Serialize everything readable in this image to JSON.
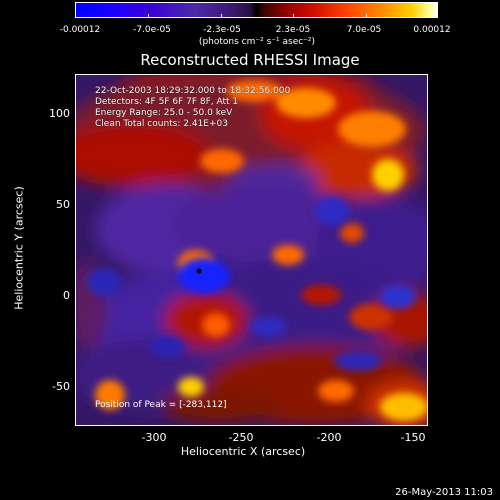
{
  "colorbar": {
    "labels": [
      "-0.00012",
      "-7.0e-05",
      "-2.3e-05",
      "2.3e-05",
      "7.0e-05",
      "0.00012"
    ],
    "units_text": "(photons cm⁻² s⁻¹ asec⁻²)"
  },
  "plot": {
    "title": "Reconstructed RHESSI Image",
    "overlay": {
      "line1": "22-Oct-2003 18:29:32.000 to 18:32:56.000",
      "line2": "Detectors: 4F 5F 6F 7F 8F, Att 1",
      "line3": "Energy Range: 25.0 - 50.0 keV",
      "line4": "Clean    Total counts: 2.41E+03"
    },
    "peak": "Position of Peak = [-283,112]"
  },
  "axes": {
    "x_label": "Heliocentric X (arcsec)",
    "y_label": "Heliocentric Y (arcsec)",
    "x_ticks": [
      "-300",
      "-250",
      "-200",
      "-150"
    ],
    "y_ticks": [
      "100",
      "50",
      "0",
      "-50"
    ]
  },
  "footer": {
    "timestamp": "26-May-2013 11:03"
  }
}
